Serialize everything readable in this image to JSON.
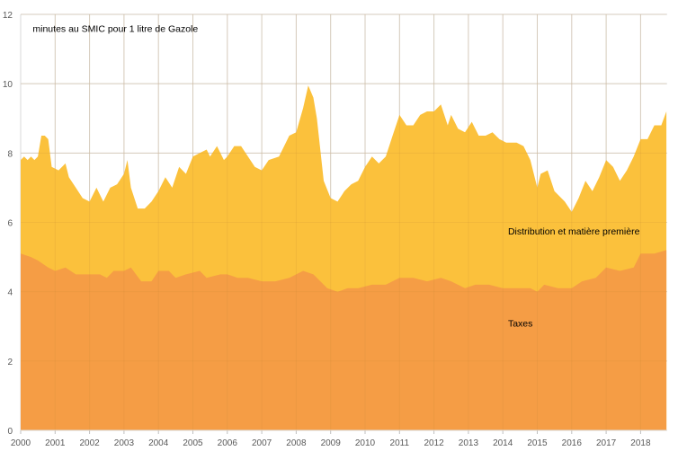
{
  "chart_data": {
    "type": "area",
    "stacked": true,
    "title": "minutes au SMIC pour 1 litre de Gazole",
    "xlabel": "",
    "ylabel": "",
    "xlim": [
      2000,
      2018.75
    ],
    "ylim": [
      0,
      12
    ],
    "grid": true,
    "x_ticks": [
      "2000",
      "2001",
      "2002",
      "2003",
      "2004",
      "2005",
      "2006",
      "2007",
      "2008",
      "2009",
      "2010",
      "2011",
      "2012",
      "2013",
      "2014",
      "2015",
      "2016",
      "2017",
      "2018"
    ],
    "y_ticks": [
      "0",
      "2",
      "4",
      "6",
      "8",
      "10",
      "12"
    ],
    "colors": {
      "taxes": "#F59D45",
      "distribution": "#FBC13C",
      "grid": "#D9D9D9"
    },
    "series": [
      {
        "name": "Taxes",
        "label": "Taxes",
        "points": [
          [
            2000.0,
            5.1
          ],
          [
            2000.3,
            5.0
          ],
          [
            2000.5,
            4.9
          ],
          [
            2000.8,
            4.7
          ],
          [
            2001.0,
            4.6
          ],
          [
            2001.3,
            4.7
          ],
          [
            2001.6,
            4.5
          ],
          [
            2002.0,
            4.5
          ],
          [
            2002.3,
            4.5
          ],
          [
            2002.5,
            4.4
          ],
          [
            2002.7,
            4.6
          ],
          [
            2003.0,
            4.6
          ],
          [
            2003.2,
            4.7
          ],
          [
            2003.5,
            4.3
          ],
          [
            2003.8,
            4.3
          ],
          [
            2004.0,
            4.6
          ],
          [
            2004.3,
            4.6
          ],
          [
            2004.5,
            4.4
          ],
          [
            2004.8,
            4.5
          ],
          [
            2005.2,
            4.6
          ],
          [
            2005.4,
            4.4
          ],
          [
            2005.8,
            4.5
          ],
          [
            2006.0,
            4.5
          ],
          [
            2006.3,
            4.4
          ],
          [
            2006.6,
            4.4
          ],
          [
            2007.0,
            4.3
          ],
          [
            2007.4,
            4.3
          ],
          [
            2007.8,
            4.4
          ],
          [
            2008.2,
            4.6
          ],
          [
            2008.5,
            4.5
          ],
          [
            2008.9,
            4.1
          ],
          [
            2009.2,
            4.0
          ],
          [
            2009.5,
            4.1
          ],
          [
            2009.8,
            4.1
          ],
          [
            2010.2,
            4.2
          ],
          [
            2010.6,
            4.2
          ],
          [
            2011.0,
            4.4
          ],
          [
            2011.4,
            4.4
          ],
          [
            2011.8,
            4.3
          ],
          [
            2012.2,
            4.4
          ],
          [
            2012.5,
            4.3
          ],
          [
            2012.9,
            4.1
          ],
          [
            2013.2,
            4.2
          ],
          [
            2013.6,
            4.2
          ],
          [
            2014.0,
            4.1
          ],
          [
            2014.4,
            4.1
          ],
          [
            2014.8,
            4.1
          ],
          [
            2015.0,
            4.0
          ],
          [
            2015.2,
            4.2
          ],
          [
            2015.6,
            4.1
          ],
          [
            2016.0,
            4.1
          ],
          [
            2016.3,
            4.3
          ],
          [
            2016.7,
            4.4
          ],
          [
            2017.0,
            4.7
          ],
          [
            2017.4,
            4.6
          ],
          [
            2017.8,
            4.7
          ],
          [
            2018.0,
            5.1
          ],
          [
            2018.4,
            5.1
          ],
          [
            2018.75,
            5.2
          ]
        ]
      },
      {
        "name": "Distribution et matière première",
        "label": "Distribution et matière première",
        "total_points": [
          [
            2000.0,
            7.8
          ],
          [
            2000.1,
            7.9
          ],
          [
            2000.2,
            7.8
          ],
          [
            2000.3,
            7.9
          ],
          [
            2000.4,
            7.8
          ],
          [
            2000.5,
            7.9
          ],
          [
            2000.6,
            8.5
          ],
          [
            2000.7,
            8.5
          ],
          [
            2000.8,
            8.4
          ],
          [
            2000.9,
            7.6
          ],
          [
            2001.1,
            7.5
          ],
          [
            2001.3,
            7.7
          ],
          [
            2001.4,
            7.3
          ],
          [
            2001.6,
            7.0
          ],
          [
            2001.8,
            6.7
          ],
          [
            2002.0,
            6.6
          ],
          [
            2002.2,
            7.0
          ],
          [
            2002.4,
            6.6
          ],
          [
            2002.6,
            7.0
          ],
          [
            2002.8,
            7.1
          ],
          [
            2003.0,
            7.4
          ],
          [
            2003.1,
            7.8
          ],
          [
            2003.2,
            7.0
          ],
          [
            2003.4,
            6.4
          ],
          [
            2003.6,
            6.4
          ],
          [
            2003.8,
            6.6
          ],
          [
            2004.0,
            6.9
          ],
          [
            2004.2,
            7.3
          ],
          [
            2004.4,
            7.0
          ],
          [
            2004.6,
            7.6
          ],
          [
            2004.8,
            7.4
          ],
          [
            2005.0,
            7.9
          ],
          [
            2005.2,
            8.0
          ],
          [
            2005.4,
            8.1
          ],
          [
            2005.5,
            7.9
          ],
          [
            2005.7,
            8.2
          ],
          [
            2005.9,
            7.8
          ],
          [
            2006.0,
            7.9
          ],
          [
            2006.2,
            8.2
          ],
          [
            2006.4,
            8.2
          ],
          [
            2006.6,
            7.9
          ],
          [
            2006.8,
            7.6
          ],
          [
            2007.0,
            7.5
          ],
          [
            2007.2,
            7.8
          ],
          [
            2007.5,
            7.9
          ],
          [
            2007.8,
            8.5
          ],
          [
            2008.0,
            8.6
          ],
          [
            2008.2,
            9.3
          ],
          [
            2008.35,
            9.95
          ],
          [
            2008.5,
            9.6
          ],
          [
            2008.6,
            9.0
          ],
          [
            2008.8,
            7.2
          ],
          [
            2009.0,
            6.7
          ],
          [
            2009.2,
            6.6
          ],
          [
            2009.4,
            6.9
          ],
          [
            2009.6,
            7.1
          ],
          [
            2009.8,
            7.2
          ],
          [
            2010.0,
            7.6
          ],
          [
            2010.2,
            7.9
          ],
          [
            2010.4,
            7.7
          ],
          [
            2010.6,
            7.9
          ],
          [
            2010.8,
            8.5
          ],
          [
            2011.0,
            9.1
          ],
          [
            2011.2,
            8.8
          ],
          [
            2011.4,
            8.8
          ],
          [
            2011.6,
            9.1
          ],
          [
            2011.8,
            9.2
          ],
          [
            2012.0,
            9.2
          ],
          [
            2012.2,
            9.4
          ],
          [
            2012.4,
            8.8
          ],
          [
            2012.5,
            9.1
          ],
          [
            2012.7,
            8.7
          ],
          [
            2012.9,
            8.6
          ],
          [
            2013.1,
            8.9
          ],
          [
            2013.3,
            8.5
          ],
          [
            2013.5,
            8.5
          ],
          [
            2013.7,
            8.6
          ],
          [
            2013.9,
            8.4
          ],
          [
            2014.1,
            8.3
          ],
          [
            2014.4,
            8.3
          ],
          [
            2014.6,
            8.2
          ],
          [
            2014.8,
            7.8
          ],
          [
            2015.0,
            7.0
          ],
          [
            2015.1,
            7.4
          ],
          [
            2015.3,
            7.5
          ],
          [
            2015.5,
            6.9
          ],
          [
            2015.8,
            6.6
          ],
          [
            2016.0,
            6.3
          ],
          [
            2016.2,
            6.7
          ],
          [
            2016.4,
            7.2
          ],
          [
            2016.6,
            6.9
          ],
          [
            2016.8,
            7.3
          ],
          [
            2017.0,
            7.8
          ],
          [
            2017.2,
            7.6
          ],
          [
            2017.4,
            7.2
          ],
          [
            2017.6,
            7.5
          ],
          [
            2017.8,
            7.9
          ],
          [
            2018.0,
            8.4
          ],
          [
            2018.2,
            8.4
          ],
          [
            2018.4,
            8.8
          ],
          [
            2018.6,
            8.8
          ],
          [
            2018.75,
            9.2
          ]
        ]
      }
    ],
    "annotations": [
      {
        "text": "minutes au SMIC pour 1 litre de Gazole",
        "x": 2000.35,
        "y": 11.5
      },
      {
        "text": "Distribution et matière première",
        "x": 2014.15,
        "y": 5.65
      },
      {
        "text": "Taxes",
        "x": 2014.15,
        "y": 3.0
      }
    ]
  }
}
